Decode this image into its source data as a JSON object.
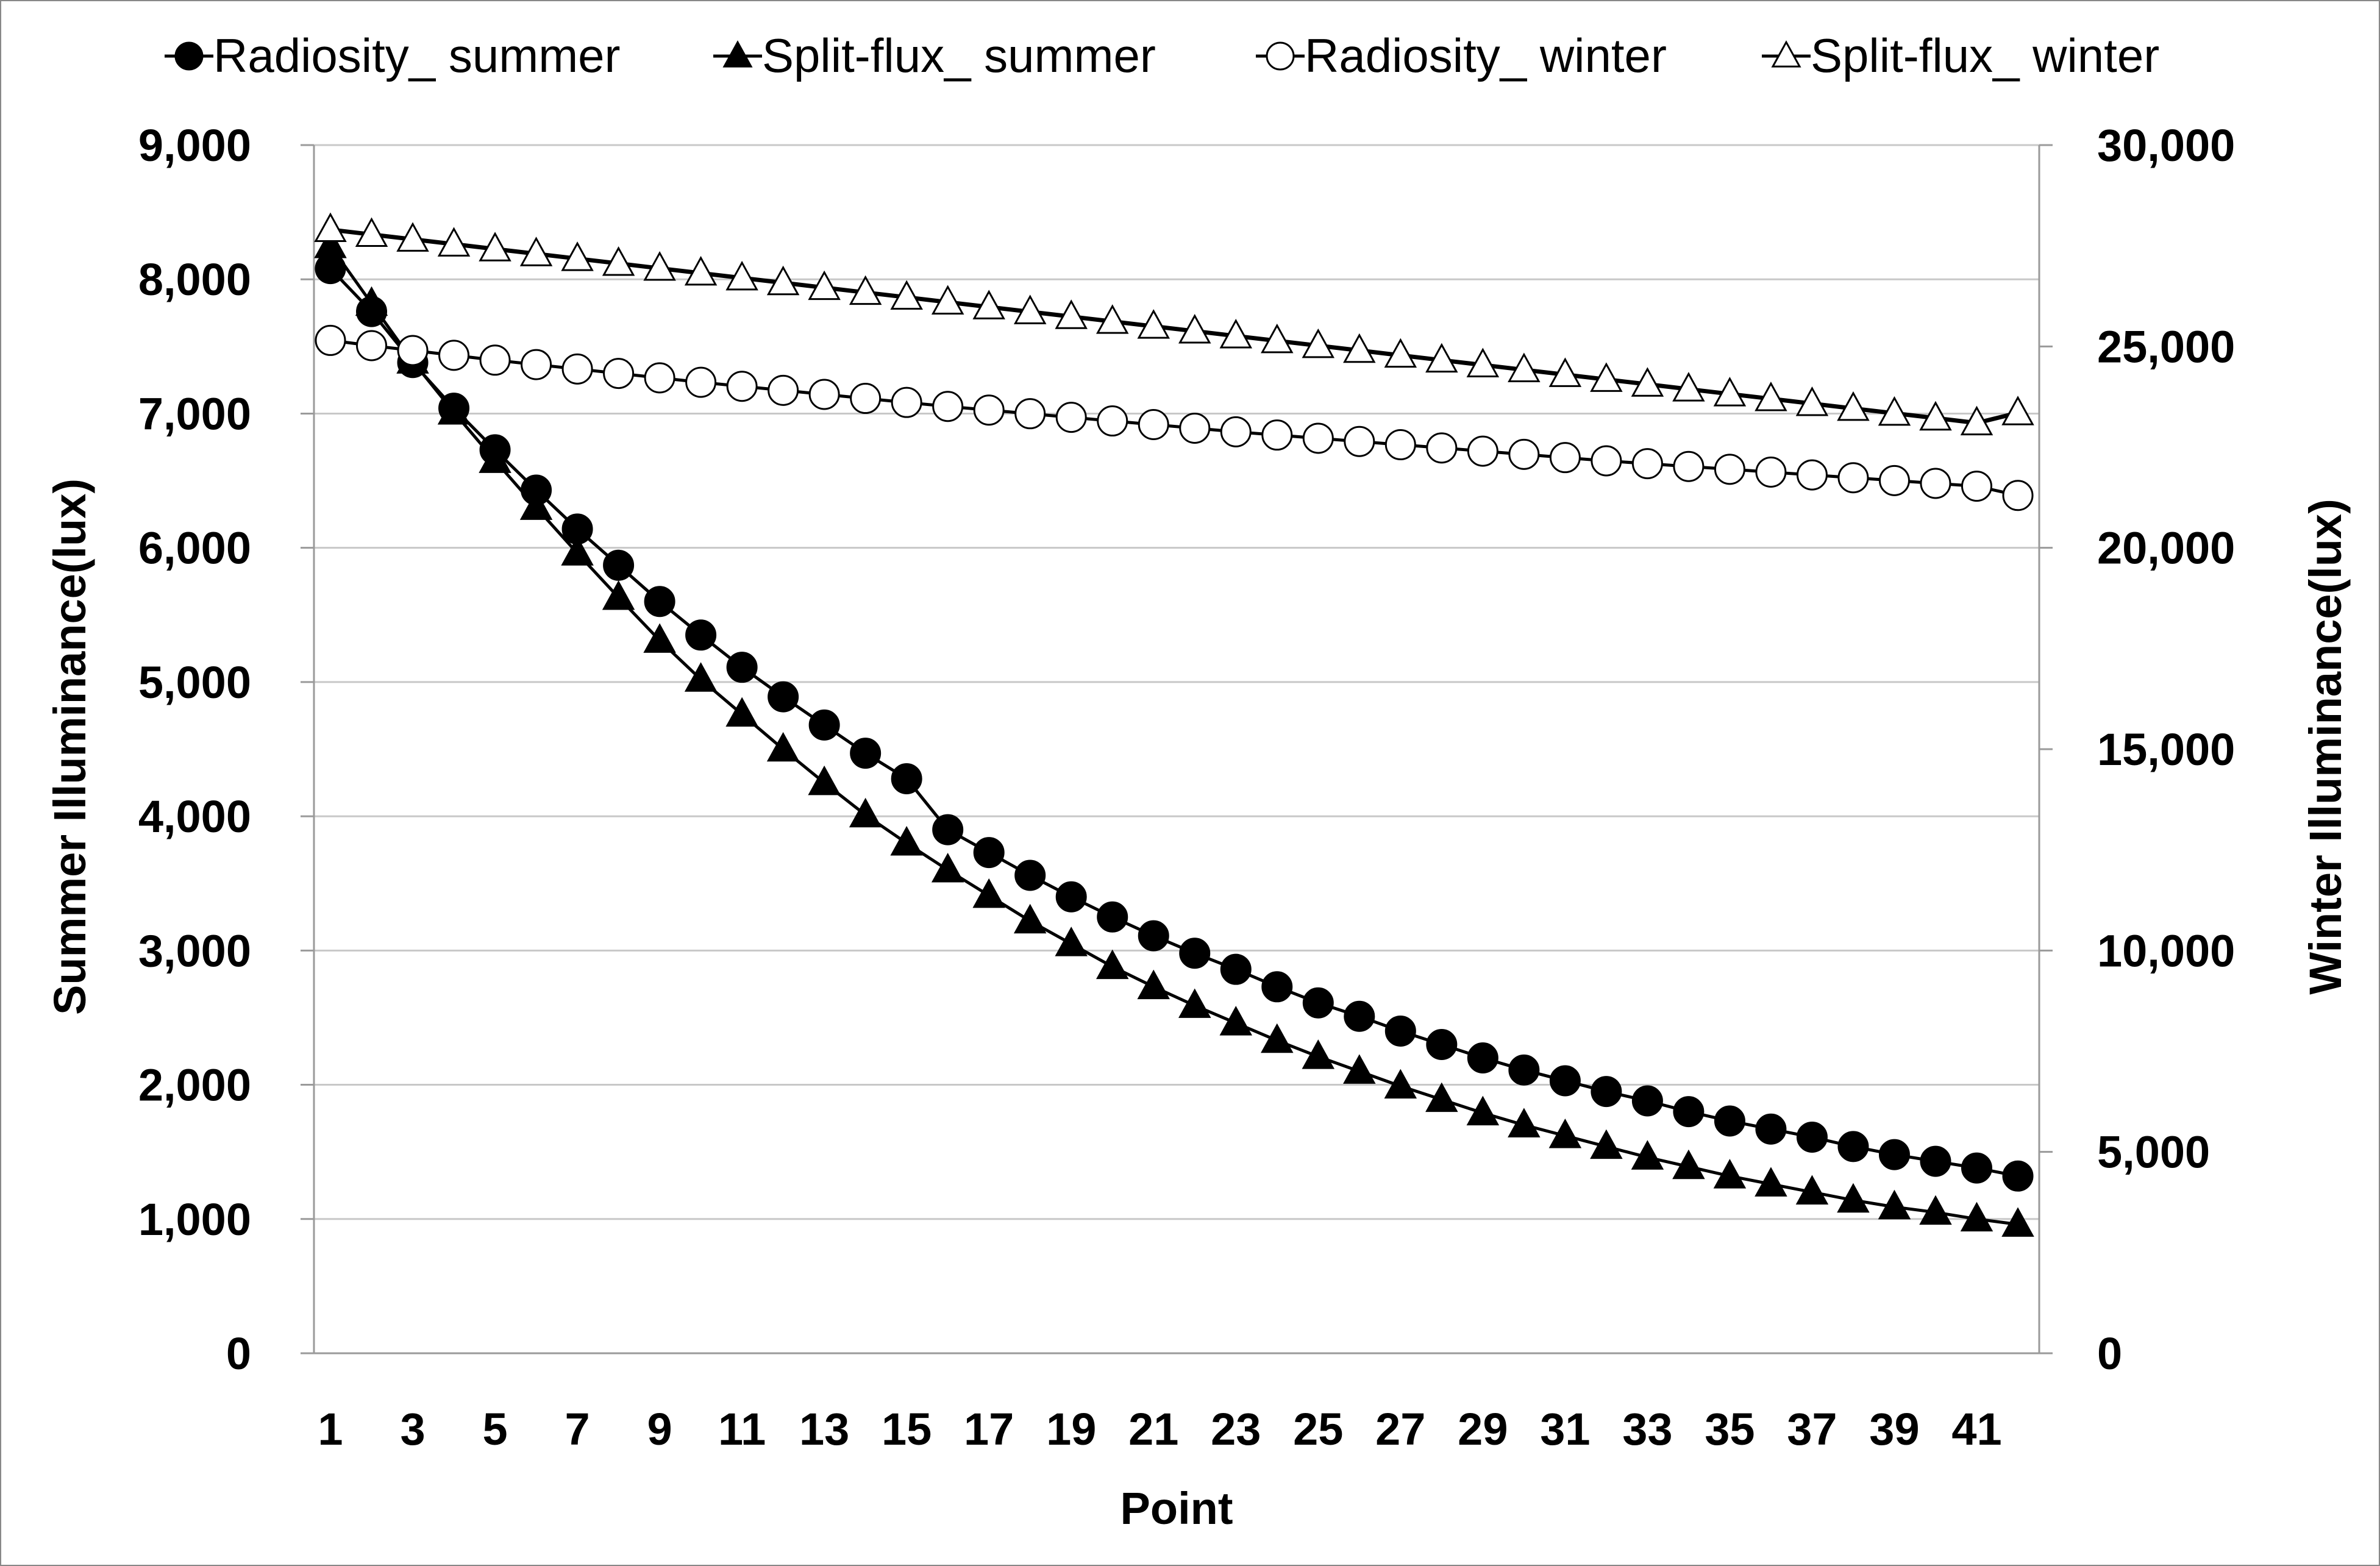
{
  "chart_data": {
    "type": "line",
    "title": "",
    "xlabel": "Point",
    "ylabel": "Summer Illuminance(lux)",
    "y2label": "Winter Illuminance(lux)",
    "ylim": [
      0,
      9000
    ],
    "y2lim": [
      0,
      30000
    ],
    "grid": true,
    "legend_position": "top",
    "x_tick_labels": [
      "1",
      "3",
      "5",
      "7",
      "9",
      "11",
      "13",
      "15",
      "17",
      "19",
      "21",
      "23",
      "25",
      "27",
      "29",
      "31",
      "33",
      "35",
      "37",
      "39",
      "41"
    ],
    "y_tick_labels": [
      "0",
      "1,000",
      "2,000",
      "3,000",
      "4,000",
      "5,000",
      "6,000",
      "7,000",
      "8,000",
      "9,000"
    ],
    "y2_tick_labels": [
      "0",
      "5,000",
      "10,000",
      "15,000",
      "20,000",
      "25,000",
      "30,000"
    ],
    "x": [
      1,
      2,
      3,
      4,
      5,
      6,
      7,
      8,
      9,
      10,
      11,
      12,
      13,
      14,
      15,
      16,
      17,
      18,
      19,
      20,
      21,
      22,
      23,
      24,
      25,
      26,
      27,
      28,
      29,
      30,
      31,
      32,
      33,
      34,
      35,
      36,
      37,
      38,
      39,
      40,
      41,
      42
    ],
    "series": [
      {
        "name": "Radiosity_ summer",
        "axis": "left",
        "marker": "filled-circle",
        "values": [
          8080,
          7760,
          7380,
          7040,
          6730,
          6430,
          6140,
          5870,
          5600,
          5350,
          5110,
          4890,
          4680,
          4470,
          4280,
          3900,
          3730,
          3560,
          3400,
          3250,
          3110,
          2980,
          2860,
          2730,
          2610,
          2510,
          2400,
          2300,
          2200,
          2110,
          2030,
          1950,
          1880,
          1800,
          1730,
          1670,
          1610,
          1540,
          1480,
          1430,
          1380,
          1320
        ]
      },
      {
        "name": "Split-flux_ summer",
        "axis": "left",
        "marker": "filled-triangle",
        "values": [
          8250,
          7820,
          7390,
          7010,
          6650,
          6300,
          5960,
          5630,
          5310,
          5020,
          4760,
          4500,
          4250,
          4010,
          3800,
          3600,
          3410,
          3220,
          3050,
          2880,
          2730,
          2590,
          2460,
          2330,
          2210,
          2100,
          1990,
          1890,
          1790,
          1700,
          1620,
          1540,
          1460,
          1390,
          1320,
          1260,
          1200,
          1140,
          1090,
          1050,
          1000,
          960
        ]
      },
      {
        "name": "Radiosity_ winter",
        "axis": "right",
        "marker": "open-circle",
        "values": [
          25150,
          25020,
          24900,
          24780,
          24660,
          24550,
          24440,
          24330,
          24220,
          24110,
          24010,
          23910,
          23810,
          23710,
          23610,
          23510,
          23420,
          23330,
          23240,
          23150,
          23060,
          22970,
          22880,
          22800,
          22720,
          22640,
          22560,
          22480,
          22400,
          22320,
          22240,
          22160,
          22090,
          22020,
          21950,
          21880,
          21810,
          21740,
          21670,
          21600,
          21530,
          21300
        ]
      },
      {
        "name": "Split-flux_ winter",
        "axis": "right",
        "marker": "open-triangle",
        "values": [
          27900,
          27780,
          27660,
          27540,
          27420,
          27300,
          27180,
          27060,
          26940,
          26820,
          26700,
          26580,
          26460,
          26340,
          26220,
          26100,
          25980,
          25860,
          25740,
          25620,
          25500,
          25380,
          25260,
          25140,
          25020,
          24900,
          24780,
          24660,
          24540,
          24420,
          24300,
          24180,
          24060,
          23940,
          23820,
          23700,
          23580,
          23460,
          23340,
          23220,
          23100,
          23350
        ]
      }
    ],
    "colors": {
      "line": "#000000",
      "grid": "#c8c8c8",
      "axis": "#9a9a9a",
      "marker_open_fill": "#ffffff"
    }
  }
}
